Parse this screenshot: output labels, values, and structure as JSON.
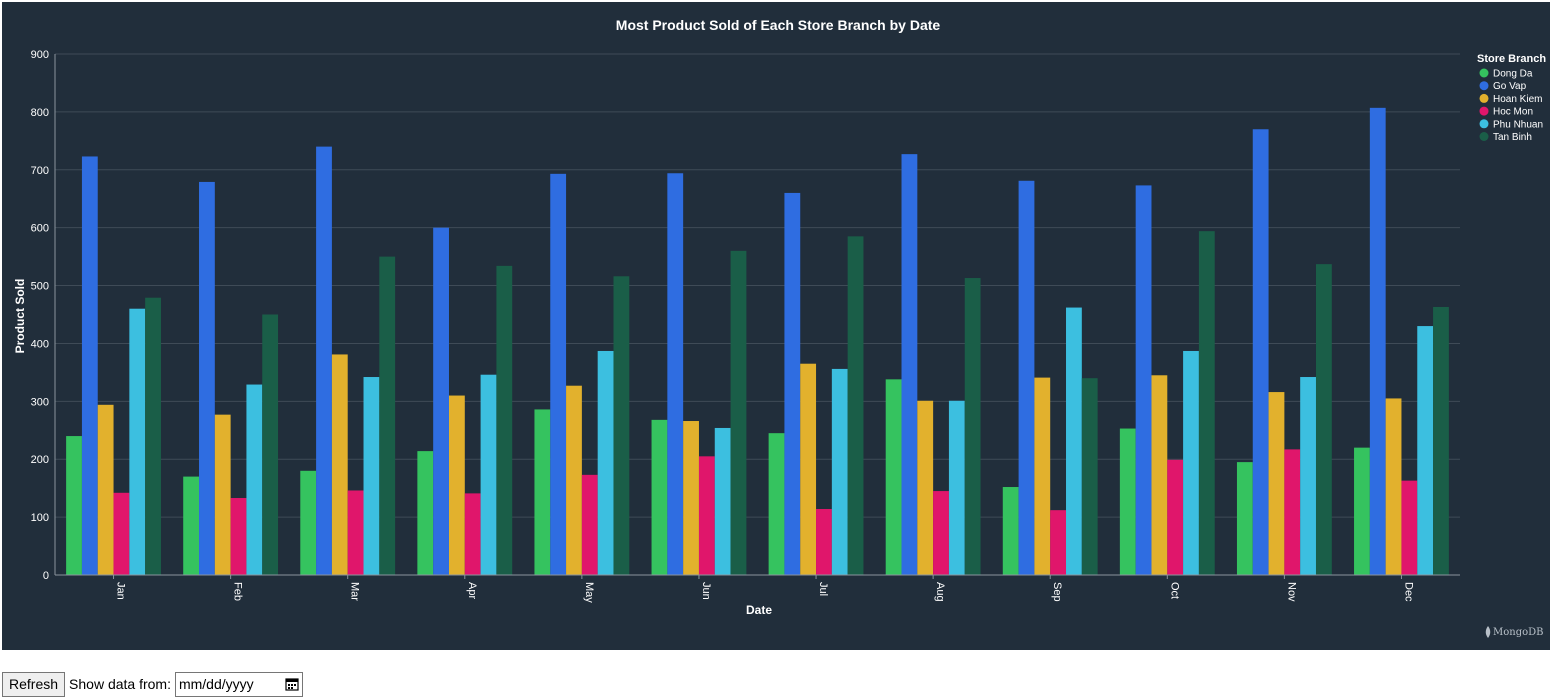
{
  "chart_data": {
    "type": "bar",
    "title": "Most Product Sold of Each Store Branch by Date",
    "xlabel": "Date",
    "ylabel": "Product Sold",
    "ylim": [
      0,
      900
    ],
    "yticks": [
      0,
      100,
      200,
      300,
      400,
      500,
      600,
      700,
      800,
      900
    ],
    "grid": true,
    "legend_position": "right",
    "legend_title": "Store Branch",
    "categories": [
      "Jan",
      "Feb",
      "Mar",
      "Apr",
      "May",
      "Jun",
      "Jul",
      "Aug",
      "Sep",
      "Oct",
      "Nov",
      "Dec"
    ],
    "series": [
      {
        "name": "Dong Da",
        "color": "#35c35f",
        "values": [
          240,
          170,
          180,
          214,
          286,
          268,
          245,
          338,
          152,
          253,
          195,
          220
        ]
      },
      {
        "name": "Go Vap",
        "color": "#2f6de1",
        "values": [
          723,
          679,
          740,
          600,
          693,
          694,
          660,
          727,
          681,
          673,
          770,
          807
        ]
      },
      {
        "name": "Hoan Kiem",
        "color": "#e2b12d",
        "values": [
          294,
          277,
          381,
          310,
          327,
          266,
          365,
          301,
          341,
          345,
          316,
          305
        ]
      },
      {
        "name": "Hoc Mon",
        "color": "#e0166b",
        "values": [
          142,
          133,
          146,
          141,
          173,
          205,
          114,
          145,
          112,
          199,
          217,
          163
        ]
      },
      {
        "name": "Phu Nhuan",
        "color": "#3cbfe0",
        "values": [
          460,
          329,
          342,
          346,
          387,
          254,
          356,
          301,
          462,
          387,
          342,
          430
        ]
      },
      {
        "name": "Tan Binh",
        "color": "#1a5e48",
        "values": [
          479,
          450,
          550,
          534,
          516,
          560,
          585,
          513,
          340,
          594,
          537,
          463
        ]
      }
    ]
  },
  "brand": "MongoDB",
  "colors": {
    "background": "#212e3b",
    "grid": "#3f4b57"
  },
  "controls": {
    "refresh_label": "Refresh",
    "show_label": "Show data from:",
    "date_placeholder": "mm/dd/yyyy",
    "calendar_icon": "calendar-icon"
  }
}
